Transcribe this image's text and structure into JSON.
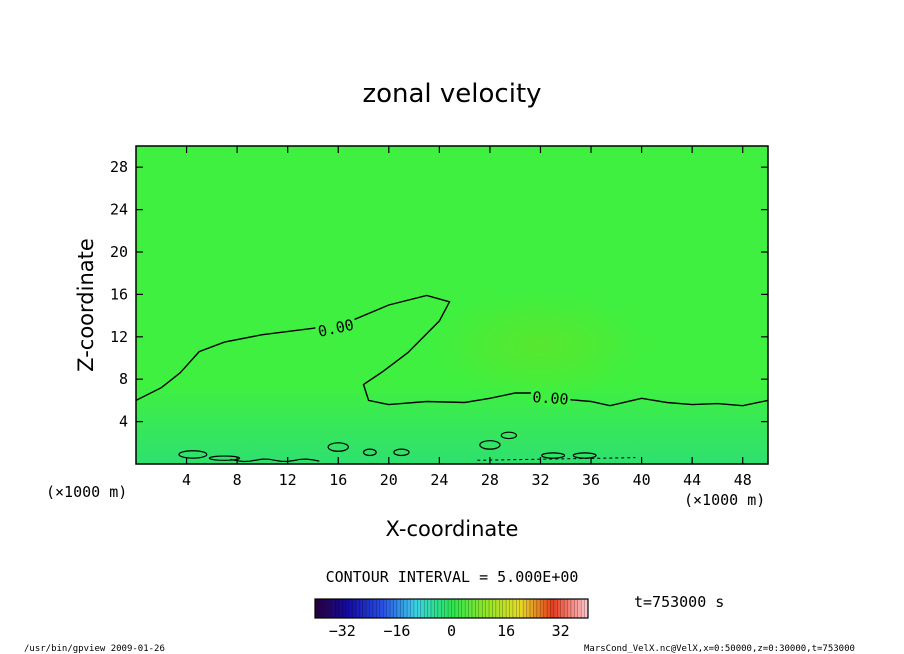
{
  "chart_data": {
    "type": "contour",
    "title": "zonal velocity",
    "xlabel": "X-coordinate",
    "ylabel": "Z-coordinate",
    "x_unit_label": "(×1000 m)",
    "y_unit_label": "(×1000 m)",
    "xlim": [
      0,
      50
    ],
    "ylim": [
      0,
      30
    ],
    "x_ticks": [
      4,
      8,
      12,
      16,
      20,
      24,
      28,
      32,
      36,
      40,
      44,
      48
    ],
    "y_ticks": [
      4,
      8,
      12,
      16,
      20,
      24,
      28
    ],
    "contour_interval_text": "CONTOUR INTERVAL = 5.000E+00",
    "contour_labels": [
      "0.00",
      "0.00"
    ],
    "time_label": "t=753000 s",
    "colorbar": {
      "min": -40,
      "max": 40,
      "tick_values": [
        -32,
        -16,
        0,
        16,
        32
      ]
    },
    "zero_contour_main": [
      {
        "x": 0,
        "y": 6.0
      },
      {
        "x": 2,
        "y": 7.2
      },
      {
        "x": 3.5,
        "y": 8.6
      },
      {
        "x": 5,
        "y": 10.6
      },
      {
        "x": 7,
        "y": 11.5
      },
      {
        "x": 10,
        "y": 12.2
      },
      {
        "x": 14,
        "y": 12.8
      },
      {
        "x": 17,
        "y": 13.5
      },
      {
        "x": 20,
        "y": 15.0
      },
      {
        "x": 23,
        "y": 15.9
      },
      {
        "x": 24.8,
        "y": 15.3
      },
      {
        "x": 24.0,
        "y": 13.5
      },
      {
        "x": 21.5,
        "y": 10.5
      },
      {
        "x": 19.5,
        "y": 8.7
      },
      {
        "x": 18.0,
        "y": 7.5
      },
      {
        "x": 18.4,
        "y": 6.0
      },
      {
        "x": 20,
        "y": 5.6
      },
      {
        "x": 23,
        "y": 5.9
      },
      {
        "x": 26,
        "y": 5.8
      },
      {
        "x": 28,
        "y": 6.2
      },
      {
        "x": 30,
        "y": 6.7
      },
      {
        "x": 32,
        "y": 6.7
      },
      {
        "x": 34,
        "y": 6.1
      },
      {
        "x": 36,
        "y": 5.9
      },
      {
        "x": 37.5,
        "y": 5.5
      },
      {
        "x": 40,
        "y": 6.2
      },
      {
        "x": 42,
        "y": 5.8
      },
      {
        "x": 44,
        "y": 5.6
      },
      {
        "x": 46,
        "y": 5.7
      },
      {
        "x": 48,
        "y": 5.5
      },
      {
        "x": 50,
        "y": 6.0
      }
    ]
  },
  "footer": {
    "left": "/usr/bin/gpview   2009-01-26",
    "right": "MarsCond_VelX.nc@VelX,x=0:50000,z=0:30000,t=753000"
  }
}
